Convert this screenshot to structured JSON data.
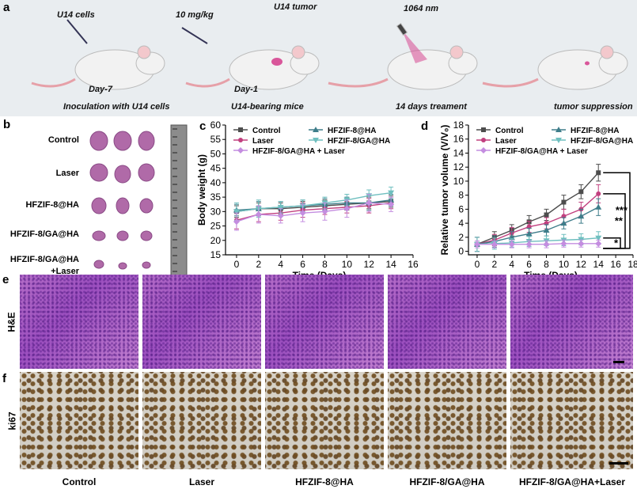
{
  "panel_labels": [
    "a",
    "b",
    "c",
    "d",
    "e",
    "f"
  ],
  "panel_a": {
    "steps": [
      {
        "top": "U14 cells",
        "day": "Day-7",
        "caption": "Inoculation with U14 cells"
      },
      {
        "top": "10 mg/kg",
        "day": "Day-1",
        "caption": "U14-bearing mice",
        "tumor": "U14 tumor"
      },
      {
        "top": "1064 nm",
        "caption": "14 days treament"
      },
      {
        "caption": "tumor suppression"
      }
    ]
  },
  "panel_b": {
    "groups": [
      [
        "Control"
      ],
      [
        "Laser"
      ],
      [
        "HFZIF-8@HA"
      ],
      [
        "HFZIF-8/GA@HA"
      ],
      [
        "HFZIF-8/GA@HA",
        "+Laser"
      ]
    ]
  },
  "chart_data": [
    {
      "type": "line",
      "xlabel": "Time (Days)",
      "ylabel": "Body weight (g)",
      "x": [
        0,
        2,
        4,
        6,
        8,
        10,
        12,
        14
      ],
      "xlim": [
        -1,
        16
      ],
      "xticks": [
        0,
        2,
        4,
        6,
        8,
        10,
        12,
        14,
        16
      ],
      "ylim": [
        15,
        60
      ],
      "yticks": [
        15,
        20,
        25,
        30,
        35,
        40,
        45,
        50,
        55,
        60
      ],
      "series": [
        {
          "name": "Control",
          "color": "#4d4d4d",
          "marker": "square",
          "values": [
            30,
            31,
            31,
            31.5,
            32,
            32.5,
            33,
            33.5
          ],
          "errors": [
            2,
            2,
            2,
            2,
            2,
            2,
            2,
            2
          ]
        },
        {
          "name": "Laser",
          "color": "#c2407f",
          "marker": "circle",
          "values": [
            27,
            29,
            29.5,
            30.5,
            31,
            31.5,
            32,
            33
          ],
          "errors": [
            3,
            2.5,
            2.5,
            2.5,
            2,
            2,
            2.5,
            2
          ]
        },
        {
          "name": "HFZIF-8@HA",
          "color": "#3e7d8a",
          "marker": "triangle-up",
          "values": [
            30.5,
            31,
            31.5,
            32,
            32.5,
            33,
            33,
            34
          ],
          "errors": [
            2,
            2.5,
            2,
            2,
            2,
            2,
            2.5,
            2
          ]
        },
        {
          "name": "HFZIF-8/GA@HA",
          "color": "#6fbfbf",
          "marker": "triangle-down",
          "values": [
            30,
            31,
            31.5,
            32,
            33,
            34,
            35.5,
            36.5
          ],
          "errors": [
            3,
            3,
            2,
            2,
            2,
            2,
            2,
            2
          ]
        },
        {
          "name": "HFZIF-8/GA@HA + Laser",
          "color": "#c48de0",
          "marker": "diamond",
          "values": [
            26.5,
            29,
            28.5,
            29.5,
            30,
            31,
            33,
            32.5
          ],
          "errors": [
            3,
            3,
            2.5,
            3,
            3,
            3,
            3,
            2.5
          ]
        }
      ]
    },
    {
      "type": "line",
      "xlabel": "Time (Days)",
      "ylabel": "Relative tumor volume (V/V₀)",
      "x": [
        0,
        2,
        4,
        6,
        8,
        10,
        12,
        14
      ],
      "xlim": [
        -1,
        18
      ],
      "xticks": [
        0,
        2,
        4,
        6,
        8,
        10,
        12,
        14,
        16,
        18
      ],
      "ylim": [
        -0.5,
        18
      ],
      "yticks": [
        0,
        2,
        4,
        6,
        8,
        10,
        12,
        14,
        16,
        18
      ],
      "series": [
        {
          "name": "Control",
          "color": "#4d4d4d",
          "marker": "square",
          "values": [
            1,
            2,
            3,
            4.2,
            5.2,
            7,
            8.5,
            11.2
          ],
          "errors": [
            1,
            0.8,
            0.8,
            0.9,
            0.8,
            1,
            1,
            1.2
          ]
        },
        {
          "name": "Laser",
          "color": "#c2407f",
          "marker": "circle",
          "values": [
            1,
            1.6,
            2.6,
            3.5,
            4,
            5,
            6,
            8.2
          ],
          "errors": [
            1,
            0.8,
            0.8,
            0.8,
            0.8,
            1,
            1,
            1.3
          ]
        },
        {
          "name": "HFZIF-8@HA",
          "color": "#3e7d8a",
          "marker": "triangle-up",
          "values": [
            1,
            1.4,
            2,
            2.5,
            3,
            4,
            5,
            6.3
          ],
          "errors": [
            1,
            0.8,
            0.8,
            0.8,
            0.8,
            0.8,
            1,
            1.2
          ]
        },
        {
          "name": "HFZIF-8/GA@HA",
          "color": "#6fbfbf",
          "marker": "triangle-down",
          "values": [
            1,
            1.1,
            1.2,
            1.4,
            1.5,
            1.6,
            1.7,
            1.9
          ],
          "errors": [
            1,
            0.8,
            0.6,
            0.7,
            0.7,
            0.8,
            0.8,
            0.9
          ]
        },
        {
          "name": "HFZIF-8/GA@HA + Laser",
          "color": "#c48de0",
          "marker": "diamond",
          "values": [
            1,
            1,
            1,
            1,
            1,
            1.1,
            1.1,
            1.1
          ],
          "errors": [
            0.5,
            0.5,
            0.5,
            0.5,
            0.5,
            0.5,
            0.5,
            0.5
          ]
        }
      ],
      "annotations": [
        "***",
        "**",
        "*"
      ]
    }
  ],
  "panel_e": {
    "label": "H&E"
  },
  "panel_f": {
    "label": "ki67"
  },
  "groups": [
    "Control",
    "Laser",
    "HFZIF-8@HA",
    "HFZIF-8/GA@HA",
    "HFZIF-8/GA@HA+Laser"
  ]
}
